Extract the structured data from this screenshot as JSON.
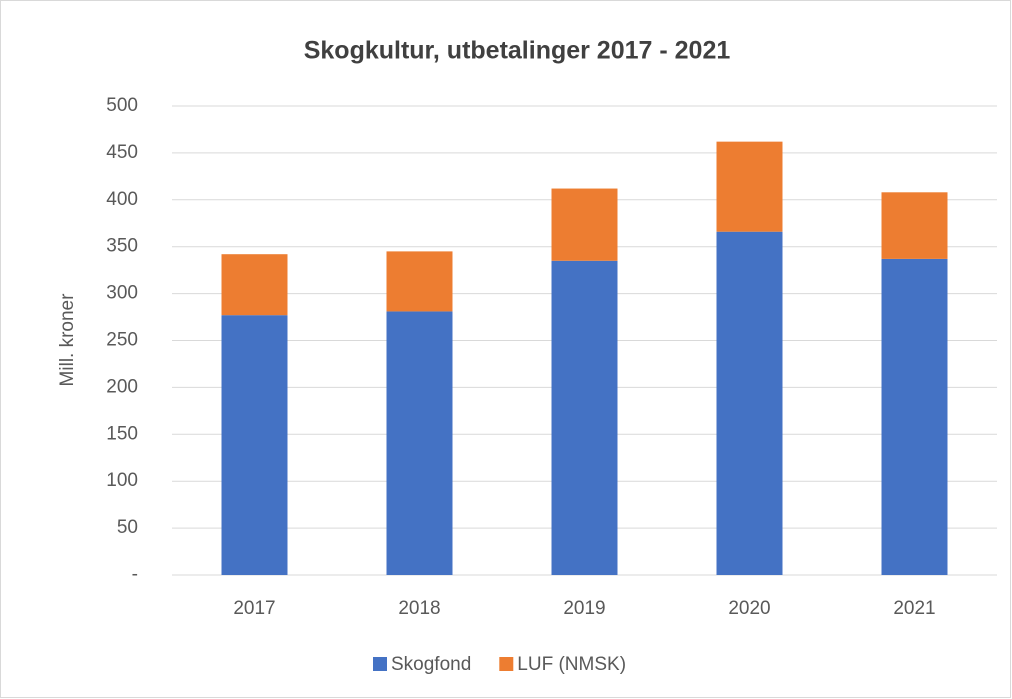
{
  "chart_data": {
    "type": "stacked_bar",
    "title": "Skogkultur, utbetalinger 2017 - 2021",
    "y_label": "Mill. kroner",
    "categories": [
      "2017",
      "2018",
      "2019",
      "2020",
      "2021"
    ],
    "series": [
      {
        "name": "Skogfond",
        "color": "#4472c4",
        "values": [
          277,
          281,
          335,
          366,
          337
        ]
      },
      {
        "name": "LUF (NMSK)",
        "color": "#ed7d31",
        "values": [
          65,
          64,
          77,
          96,
          71
        ]
      }
    ],
    "ylim": [
      0,
      500
    ],
    "yticks": [
      {
        "value": 0,
        "label": "-"
      },
      50,
      100,
      150,
      200,
      250,
      300,
      350,
      400,
      450,
      500
    ],
    "grid": true,
    "legend": "bottom"
  }
}
